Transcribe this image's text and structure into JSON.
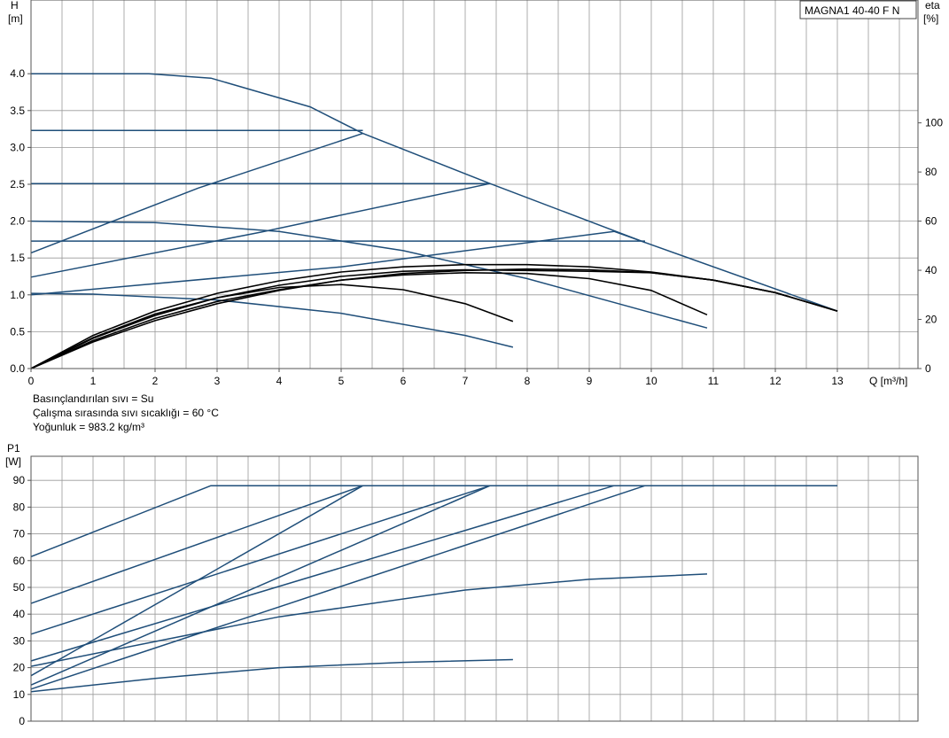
{
  "header": {
    "model": "MAGNA1 40-40 F N"
  },
  "notes": {
    "line1": "Basınçlandırılan sıvı = Su",
    "line2": "Çalışma sırasında sıvı sıcaklığı = 60 °C",
    "line3": "Yoğunluk = 983.2 kg/m³"
  },
  "colors": {
    "blue": "#1f4e79",
    "black": "#000000",
    "grid": "#999999",
    "axis": "#555555"
  },
  "chart_data": [
    {
      "type": "line",
      "ylabel": "H",
      "ylabel_unit": "[m]",
      "y2label": "eta",
      "y2label_unit": "[%]",
      "xlabel": "Q [m³/h]",
      "xlim": [
        0,
        14.3
      ],
      "ylim": [
        0,
        5.0
      ],
      "y2lim": [
        0,
        150
      ],
      "x_ticks": [
        "0",
        "1",
        "2",
        "3",
        "4",
        "5",
        "6",
        "7",
        "8",
        "9",
        "10",
        "11",
        "12",
        "13"
      ],
      "y_ticks": [
        "0.0",
        "0.5",
        "1.0",
        "1.5",
        "2.0",
        "2.5",
        "3.0",
        "3.5",
        "4.0"
      ],
      "y2_ticks": [
        "0",
        "20",
        "40",
        "60",
        "80",
        "100"
      ],
      "grid": true,
      "series": [
        {
          "color": "blue",
          "points": [
            [
              0,
              4.0
            ],
            [
              1.9,
              4.0
            ],
            [
              2.9,
              3.94
            ],
            [
              4.5,
              3.55
            ],
            [
              5.35,
              3.19
            ],
            [
              7.4,
              2.51
            ],
            [
              9.9,
              1.71
            ],
            [
              13,
              0.78
            ]
          ]
        },
        {
          "color": "blue",
          "points": [
            [
              0,
              3.23
            ],
            [
              5.35,
              3.23
            ]
          ]
        },
        {
          "color": "blue",
          "points": [
            [
              0,
              2.51
            ],
            [
              7.4,
              2.51
            ]
          ]
        },
        {
          "color": "blue",
          "points": [
            [
              0,
              1.73
            ],
            [
              9.9,
              1.73
            ]
          ]
        },
        {
          "color": "blue",
          "points": [
            [
              0,
              1.57
            ],
            [
              2.7,
              2.45
            ],
            [
              5.35,
              3.19
            ]
          ]
        },
        {
          "color": "blue",
          "points": [
            [
              0,
              1.24
            ],
            [
              3.7,
              1.85
            ],
            [
              7.4,
              2.51
            ]
          ]
        },
        {
          "color": "blue",
          "points": [
            [
              0,
              1.0
            ],
            [
              5,
              1.38
            ],
            [
              9.4,
              1.86
            ],
            [
              9.9,
              1.71
            ]
          ]
        },
        {
          "color": "blue",
          "points": [
            [
              0,
              2.0
            ],
            [
              2,
              1.98
            ],
            [
              4,
              1.86
            ],
            [
              6,
              1.6
            ],
            [
              8,
              1.22
            ],
            [
              10.9,
              0.55
            ]
          ]
        },
        {
          "color": "blue",
          "points": [
            [
              0,
              1.02
            ],
            [
              1,
              1.01
            ],
            [
              3,
              0.93
            ],
            [
              5,
              0.75
            ],
            [
              7,
              0.45
            ],
            [
              7.77,
              0.29
            ]
          ]
        },
        {
          "color": "black",
          "points": [
            [
              0,
              0
            ],
            [
              1,
              0.42
            ],
            [
              2,
              0.74
            ],
            [
              3,
              0.96
            ],
            [
              4,
              1.1
            ],
            [
              5,
              1.14
            ],
            [
              6,
              1.07
            ],
            [
              7,
              0.88
            ],
            [
              7.77,
              0.64
            ]
          ]
        },
        {
          "color": "black",
          "points": [
            [
              0,
              0
            ],
            [
              1,
              0.38
            ],
            [
              2,
              0.68
            ],
            [
              3,
              0.91
            ],
            [
              4,
              1.07
            ],
            [
              5,
              1.2
            ],
            [
              6,
              1.27
            ],
            [
              7,
              1.3
            ],
            [
              8,
              1.29
            ],
            [
              9,
              1.22
            ],
            [
              10,
              1.06
            ],
            [
              10.9,
              0.73
            ]
          ]
        },
        {
          "color": "black",
          "points": [
            [
              0,
              0
            ],
            [
              1,
              0.45
            ],
            [
              2,
              0.78
            ],
            [
              3,
              1.02
            ],
            [
              4,
              1.19
            ],
            [
              5,
              1.31
            ],
            [
              6,
              1.38
            ],
            [
              7,
              1.41
            ],
            [
              8,
              1.41
            ],
            [
              9,
              1.38
            ],
            [
              10,
              1.31
            ],
            [
              11,
              1.2
            ],
            [
              12,
              1.03
            ],
            [
              13,
              0.78
            ]
          ]
        },
        {
          "color": "black",
          "points": [
            [
              0,
              0
            ],
            [
              1,
              0.41
            ],
            [
              2,
              0.72
            ],
            [
              3,
              0.96
            ],
            [
              4,
              1.13
            ],
            [
              5,
              1.25
            ],
            [
              6,
              1.32
            ],
            [
              7,
              1.34
            ],
            [
              8,
              1.33
            ],
            [
              9,
              1.32
            ],
            [
              10,
              1.3
            ],
            [
              11,
              1.2
            ],
            [
              12,
              1.03
            ],
            [
              13,
              0.78
            ]
          ]
        },
        {
          "color": "black",
          "points": [
            [
              0,
              0
            ],
            [
              1,
              0.36
            ],
            [
              2,
              0.65
            ],
            [
              3,
              0.88
            ],
            [
              4,
              1.06
            ],
            [
              5,
              1.2
            ],
            [
              6,
              1.29
            ],
            [
              7,
              1.33
            ],
            [
              8,
              1.35
            ],
            [
              9,
              1.34
            ],
            [
              10,
              1.3
            ],
            [
              11,
              1.2
            ],
            [
              12,
              1.03
            ],
            [
              13,
              0.78
            ]
          ]
        }
      ]
    },
    {
      "type": "line",
      "ylabel": "P1",
      "ylabel_unit": "[W]",
      "xlim": [
        0,
        14.3
      ],
      "ylim": [
        0,
        99
      ],
      "y_ticks": [
        "0",
        "10",
        "20",
        "30",
        "40",
        "50",
        "60",
        "70",
        "80",
        "90"
      ],
      "grid": true,
      "series": [
        {
          "color": "blue",
          "points": [
            [
              0,
              61.5
            ],
            [
              2.9,
              88
            ],
            [
              13,
              88
            ]
          ]
        },
        {
          "color": "blue",
          "points": [
            [
              0,
              44
            ],
            [
              5.35,
              88
            ]
          ]
        },
        {
          "color": "blue",
          "points": [
            [
              0,
              32.5
            ],
            [
              7.4,
              88
            ]
          ]
        },
        {
          "color": "blue",
          "points": [
            [
              0,
              22.5
            ],
            [
              9.4,
              88
            ]
          ]
        },
        {
          "color": "blue",
          "points": [
            [
              0,
              17
            ],
            [
              5.35,
              88
            ]
          ]
        },
        {
          "color": "blue",
          "points": [
            [
              0,
              13.5
            ],
            [
              7.4,
              88
            ]
          ]
        },
        {
          "color": "blue",
          "points": [
            [
              0,
              12
            ],
            [
              9.9,
              88
            ]
          ]
        },
        {
          "color": "blue",
          "points": [
            [
              0,
              20.5
            ],
            [
              4,
              39
            ],
            [
              7,
              49
            ],
            [
              9,
              53
            ],
            [
              10.9,
              55
            ]
          ]
        },
        {
          "color": "blue",
          "points": [
            [
              0,
              11
            ],
            [
              2,
              16
            ],
            [
              4,
              20
            ],
            [
              6,
              22
            ],
            [
              7.77,
              23
            ]
          ]
        }
      ]
    }
  ]
}
